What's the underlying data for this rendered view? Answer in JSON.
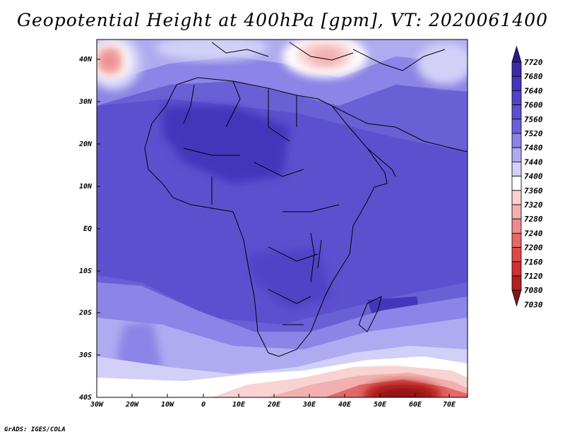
{
  "title": "Geopotential Height at 400hPa [gpm], VT: 2020061400",
  "credit": "GrADS: IGES/COLA",
  "map": {
    "lat_labels": [
      "40N",
      "30N",
      "20N",
      "10N",
      "EQ",
      "10S",
      "20S",
      "30S",
      "40S"
    ],
    "lon_labels": [
      "30W",
      "20W",
      "10W",
      "0",
      "10E",
      "20E",
      "30E",
      "40E",
      "50E",
      "60E",
      "70E"
    ]
  },
  "colorbar": {
    "levels": [
      "7720",
      "7680",
      "7640",
      "7600",
      "7560",
      "7520",
      "7480",
      "7440",
      "7400",
      "7360",
      "7320",
      "7280",
      "7240",
      "7200",
      "7160",
      "7120",
      "7080",
      "7030"
    ],
    "colors": [
      "#2a1a8c",
      "#3a2aa8",
      "#4535bb",
      "#5142c6",
      "#5d50cf",
      "#6a60d6",
      "#8c84e6",
      "#b0aaf0",
      "#d2d0f7",
      "#ffffff",
      "#f9d2d2",
      "#f3b0b0",
      "#ec8c8c",
      "#e46868",
      "#dc4a4a",
      "#cf3030",
      "#b51f1f",
      "#8c1414"
    ]
  }
}
